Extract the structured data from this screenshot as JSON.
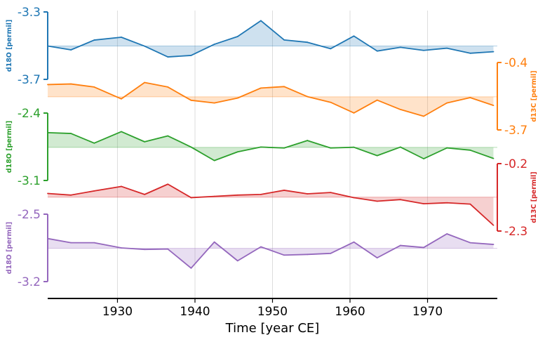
{
  "chart_data": {
    "type": "line",
    "xlabel": "Time [year CE]",
    "xlim": [
      1921,
      1979
    ],
    "xticks": [
      1930,
      1940,
      1950,
      1960,
      1970
    ],
    "grid": "vertical",
    "baseline_fill": true,
    "x": [
      1921,
      1924,
      1927,
      1930.5,
      1933.5,
      1936.5,
      1939.5,
      1942.5,
      1945.5,
      1948.5,
      1951.5,
      1954.5,
      1957.5,
      1960.5,
      1963.5,
      1966.5,
      1969.5,
      1972.5,
      1975.5,
      1978.5
    ],
    "series": [
      {
        "ylabel": "d18O [permil]",
        "color": "#1f77b4",
        "axis_side": "left",
        "ylim": [
          -3.7,
          -3.3
        ],
        "ytick_labels": [
          "-3.3",
          "-3.7"
        ],
        "baseline": -3.502,
        "values": [
          -3.502,
          -3.525,
          -3.467,
          -3.45,
          -3.503,
          -3.567,
          -3.558,
          -3.492,
          -3.446,
          -3.352,
          -3.466,
          -3.48,
          -3.518,
          -3.443,
          -3.532,
          -3.51,
          -3.528,
          -3.515,
          -3.545,
          -3.536
        ]
      },
      {
        "ylabel": "d13C [permil]",
        "color": "#ff7f0e",
        "axis_side": "right",
        "ylim": [
          -3.7,
          -0.4
        ],
        "ytick_labels": [
          "-0.4",
          "-3.7"
        ],
        "baseline": -2.08,
        "values": [
          -1.48,
          -1.45,
          -1.6,
          -2.18,
          -1.38,
          -1.6,
          -2.25,
          -2.38,
          -2.14,
          -1.65,
          -1.58,
          -2.07,
          -2.35,
          -2.87,
          -2.24,
          -2.7,
          -3.03,
          -2.38,
          -2.12,
          -2.5
        ]
      },
      {
        "ylabel": "d18O [permil]",
        "color": "#2ca02c",
        "axis_side": "left",
        "ylim": [
          -3.1,
          -2.4
        ],
        "ytick_labels": [
          "-2.4",
          "-3.1"
        ],
        "baseline": -2.756,
        "values": [
          -2.603,
          -2.612,
          -2.712,
          -2.593,
          -2.698,
          -2.637,
          -2.753,
          -2.893,
          -2.803,
          -2.753,
          -2.763,
          -2.685,
          -2.763,
          -2.755,
          -2.842,
          -2.753,
          -2.874,
          -2.762,
          -2.785,
          -2.871
        ]
      },
      {
        "ylabel": "d13C [permil]",
        "color": "#d62728",
        "axis_side": "right",
        "ylim": [
          -2.3,
          -0.2
        ],
        "ytick_labels": [
          "-0.2",
          "-2.3"
        ],
        "baseline": -1.245,
        "values": [
          -1.13,
          -1.18,
          -1.05,
          -0.91,
          -1.16,
          -0.84,
          -1.26,
          -1.22,
          -1.18,
          -1.16,
          -1.03,
          -1.14,
          -1.1,
          -1.26,
          -1.37,
          -1.32,
          -1.45,
          -1.42,
          -1.46,
          -2.12
        ]
      },
      {
        "ylabel": "d18O [permil]",
        "color": "#9467bd",
        "axis_side": "left",
        "ylim": [
          -3.2,
          -2.5
        ],
        "ytick_labels": [
          "-2.5",
          "-3.2"
        ],
        "baseline": -2.855,
        "values": [
          -2.753,
          -2.796,
          -2.796,
          -2.85,
          -2.866,
          -2.862,
          -3.06,
          -2.789,
          -2.984,
          -2.839,
          -2.925,
          -2.918,
          -2.907,
          -2.789,
          -2.953,
          -2.825,
          -2.846,
          -2.704,
          -2.796,
          -2.814
        ]
      }
    ]
  }
}
